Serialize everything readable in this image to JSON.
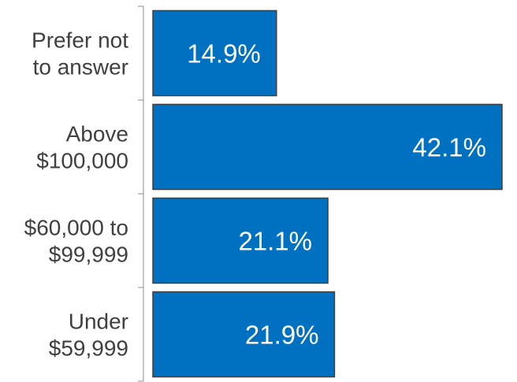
{
  "chart_data": {
    "type": "bar",
    "orientation": "horizontal",
    "categories": [
      [
        "Prefer not",
        "to answer"
      ],
      [
        "Above",
        "$100,000"
      ],
      [
        "$60,000 to",
        "$99,999"
      ],
      [
        "Under",
        "$59,999"
      ]
    ],
    "values": [
      14.9,
      42.1,
      21.1,
      21.9
    ],
    "data_labels": [
      "14.9%",
      "42.1%",
      "21.1%",
      "21.9%"
    ],
    "value_unit": "%",
    "title": "",
    "xlabel": "",
    "ylabel": "",
    "xlim": [
      0,
      42.1
    ],
    "grid": false,
    "legend": "none",
    "colors": {
      "bar_fill": "#0070c0",
      "bar_stroke": "#404040",
      "axis": "#8c8c8c",
      "category_text": "#404040",
      "value_text": "#ffffff"
    }
  }
}
